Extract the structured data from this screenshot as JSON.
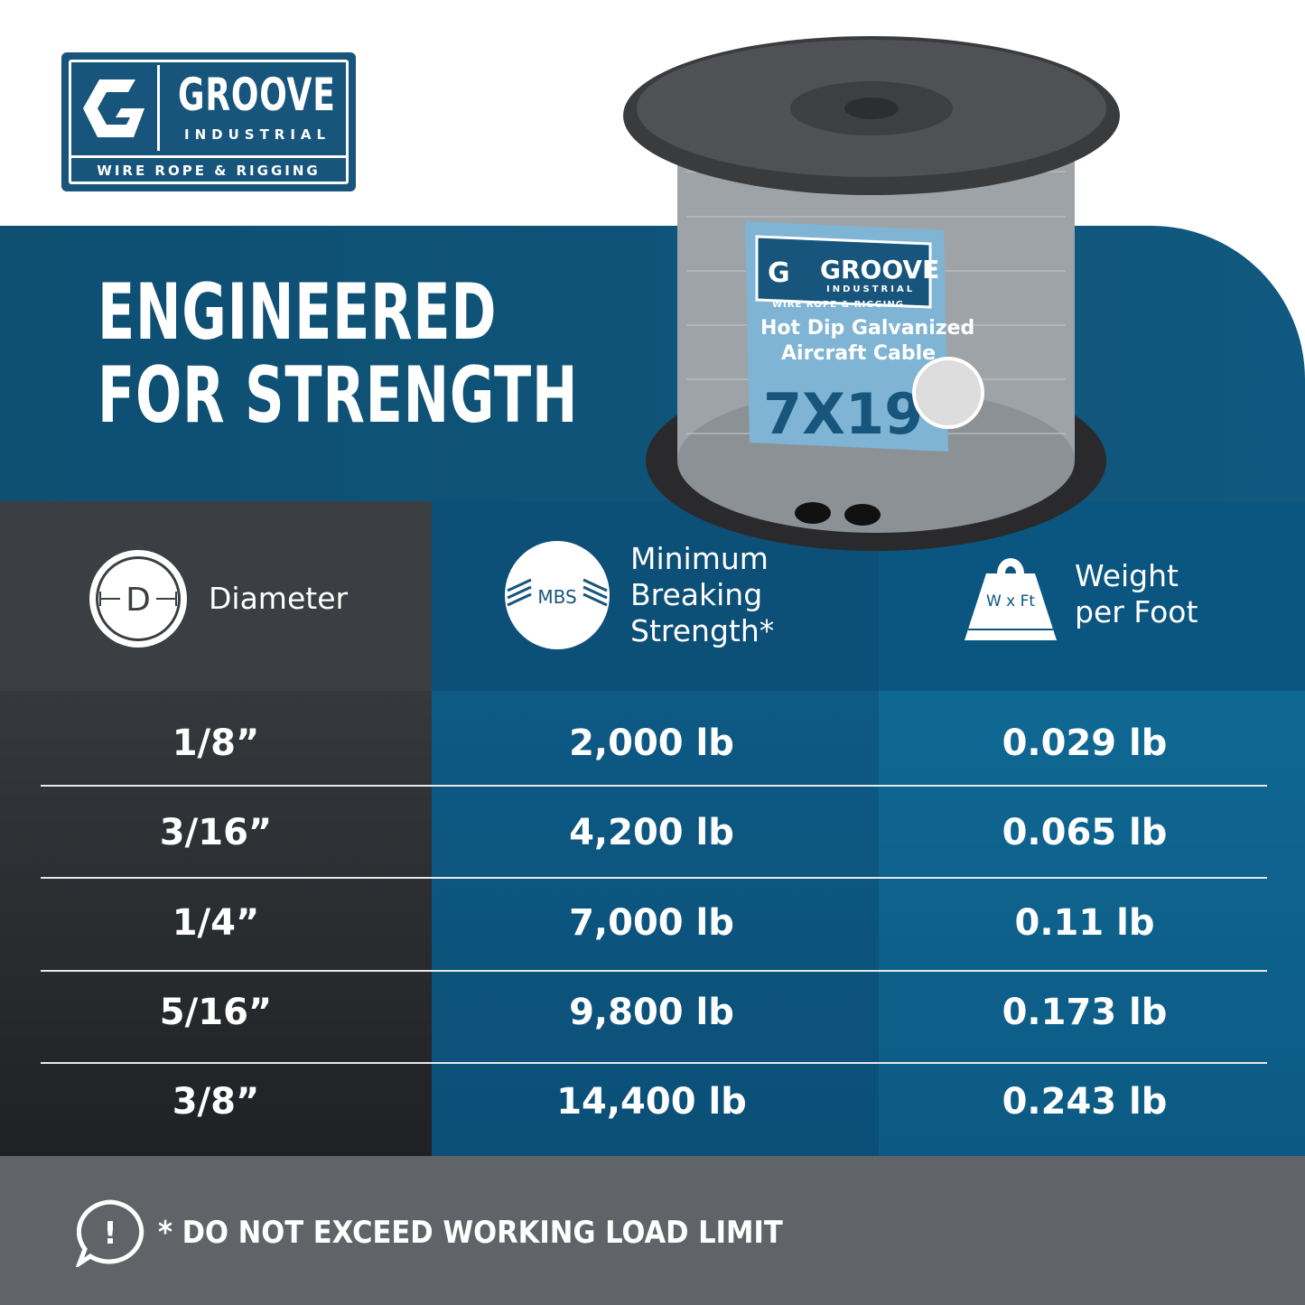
{
  "brand": {
    "name": "GROOVE",
    "sub": "INDUSTRIAL",
    "tagline": "WIRE ROPE & RIGGING",
    "color": "#17557c"
  },
  "headline": {
    "line1": "ENGINEERED",
    "line2": "FOR STRENGTH"
  },
  "product": {
    "label_brand": "GROOVE",
    "label_sub": "INDUSTRIAL",
    "label_tag": "WIRE ROPE & RIGGING",
    "label_title1": "Hot Dip Galvanized",
    "label_title2": "Aircraft Cable",
    "label_construction": "7X19"
  },
  "table": {
    "headers": [
      {
        "icon": "diameter-icon",
        "icon_text": "D",
        "label": "Diameter"
      },
      {
        "icon": "mbs-icon",
        "icon_text": "MBS",
        "label_lines": [
          "Minimum",
          "Breaking",
          "Strength*"
        ]
      },
      {
        "icon": "weight-icon",
        "icon_text": "W x Ft",
        "label_lines": [
          "Weight",
          "per Foot"
        ]
      }
    ],
    "rows": [
      {
        "diameter": "1/8”",
        "mbs": "2,000 lb",
        "weight": "0.029 lb"
      },
      {
        "diameter": "3/16”",
        "mbs": "4,200 lb",
        "weight": "0.065 lb"
      },
      {
        "diameter": "1/4”",
        "mbs": "7,000 lb",
        "weight": "0.11 lb"
      },
      {
        "diameter": "5/16”",
        "mbs": "9,800 lb",
        "weight": "0.173 lb"
      },
      {
        "diameter": "3/8”",
        "mbs": "14,400 lb",
        "weight": "0.243 lb"
      }
    ]
  },
  "footer": {
    "icon": "alert-speech-icon",
    "icon_text": "!",
    "warning": "* DO NOT EXCEED WORKING LOAD LIMIT"
  }
}
